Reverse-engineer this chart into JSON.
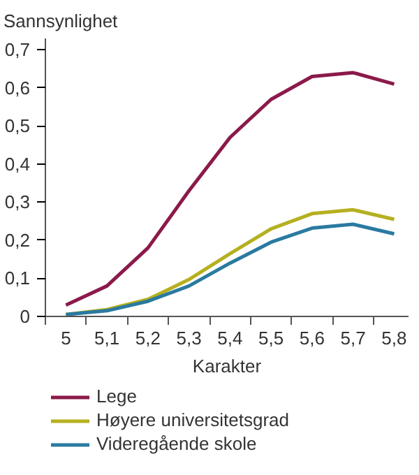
{
  "chart_data": {
    "type": "line",
    "ylabel": "Sannsynlighet",
    "xlabel": "Karakter",
    "categories": [
      "5",
      "5,1",
      "5,2",
      "5,3",
      "5,4",
      "5,5",
      "5,6",
      "5,7",
      "5,8"
    ],
    "ylim": [
      0,
      0.73
    ],
    "yticks": [
      0,
      {
        "value": 0.1,
        "label": "0,1"
      },
      {
        "value": 0.2,
        "label": "0,2"
      },
      {
        "value": 0.3,
        "label": "0,3"
      },
      {
        "value": 0.4,
        "label": "0,4"
      },
      {
        "value": 0.5,
        "label": "0,5"
      },
      {
        "value": 0.6,
        "label": "0,6"
      },
      {
        "value": 0.7,
        "label": "0,7"
      }
    ],
    "grid": false,
    "legend": "bottom",
    "line_style": "solid",
    "series": [
      {
        "name": "Lege",
        "color": "#8b1a4a",
        "values": [
          0.03,
          0.08,
          0.18,
          0.33,
          0.47,
          0.57,
          0.63,
          0.64,
          0.61
        ]
      },
      {
        "name": "Høyere universitetsgrad",
        "color": "#b5b020",
        "values": [
          0.005,
          0.018,
          0.045,
          0.097,
          0.165,
          0.23,
          0.27,
          0.28,
          0.255
        ]
      },
      {
        "name": "Videregående skole",
        "color": "#2a7aa0",
        "values": [
          0.005,
          0.015,
          0.04,
          0.08,
          0.14,
          0.195,
          0.232,
          0.242,
          0.217
        ]
      }
    ]
  }
}
